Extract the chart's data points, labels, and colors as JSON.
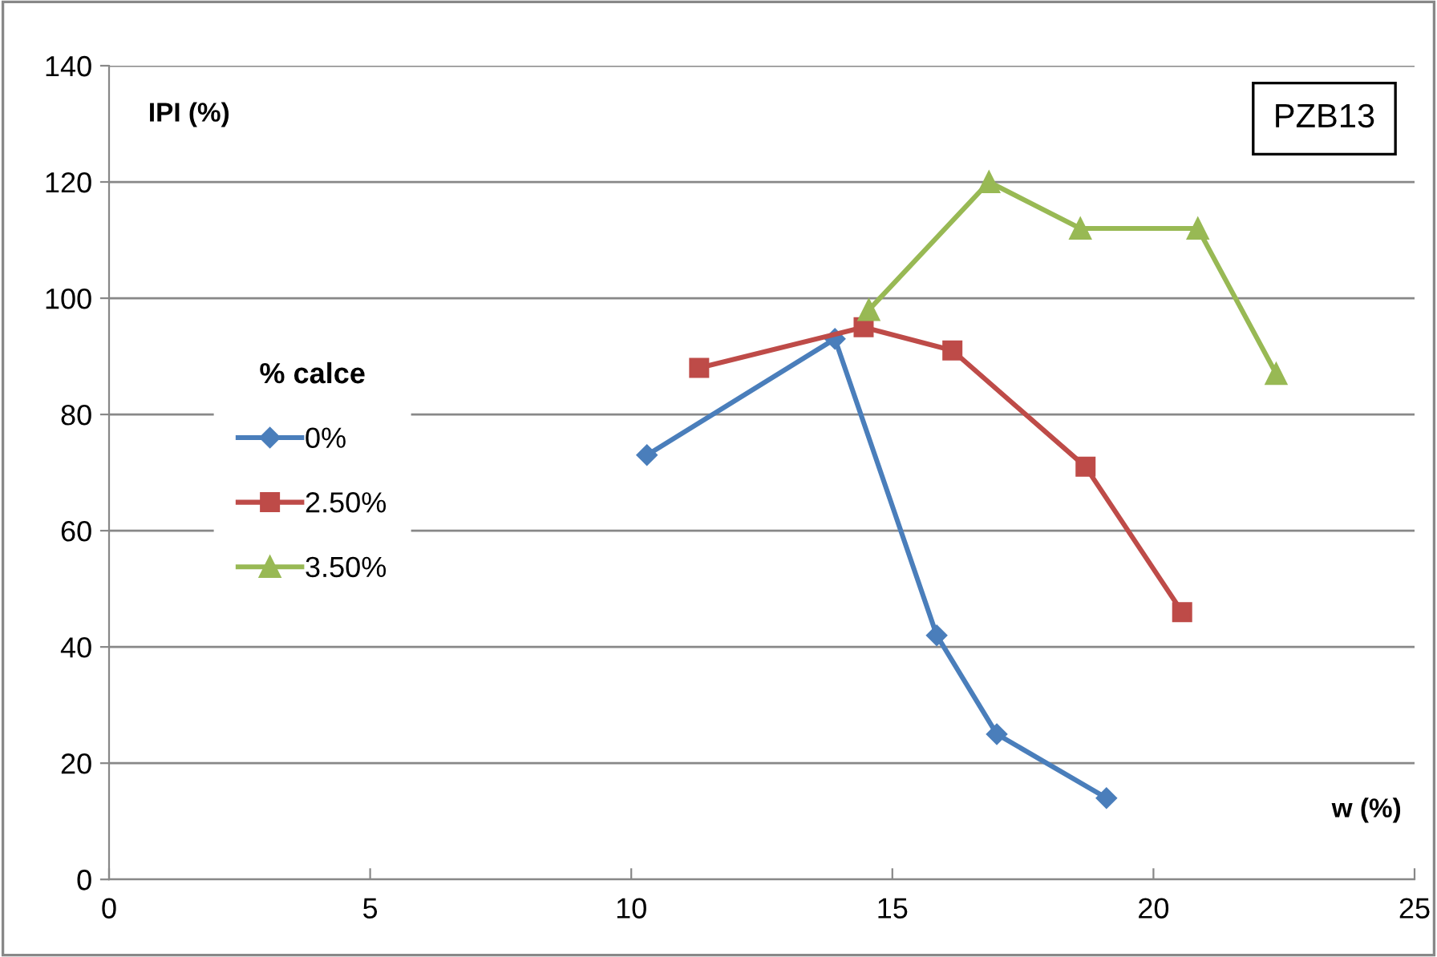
{
  "chart_data": {
    "type": "line",
    "xlabel": "w (%)",
    "ylabel": "IPI (%)",
    "legend_title": "% calce",
    "legend": "left",
    "annotations": [
      "PZB13"
    ],
    "xlim": [
      0,
      25
    ],
    "xticks": [
      0,
      5,
      10,
      15,
      20,
      25
    ],
    "ylim": [
      0,
      140
    ],
    "yticks": [
      0,
      20,
      40,
      60,
      80,
      100,
      120,
      140
    ],
    "grid": "y",
    "series": [
      {
        "name": "0%",
        "color": "#4a7ebb",
        "marker": "diamond",
        "x": [
          10.3,
          13.9,
          15.85,
          17.0,
          19.1
        ],
        "values": [
          73,
          93,
          42,
          25,
          14
        ]
      },
      {
        "name": "2.50%",
        "color": "#be4b48",
        "marker": "square",
        "x": [
          11.3,
          14.45,
          16.15,
          18.7,
          20.55
        ],
        "values": [
          88,
          95,
          91,
          71,
          46
        ]
      },
      {
        "name": "3.50%",
        "color": "#98b954",
        "marker": "triangle",
        "x": [
          14.55,
          16.85,
          18.6,
          20.85,
          22.35
        ],
        "values": [
          98,
          120,
          112,
          112,
          87
        ]
      }
    ]
  }
}
